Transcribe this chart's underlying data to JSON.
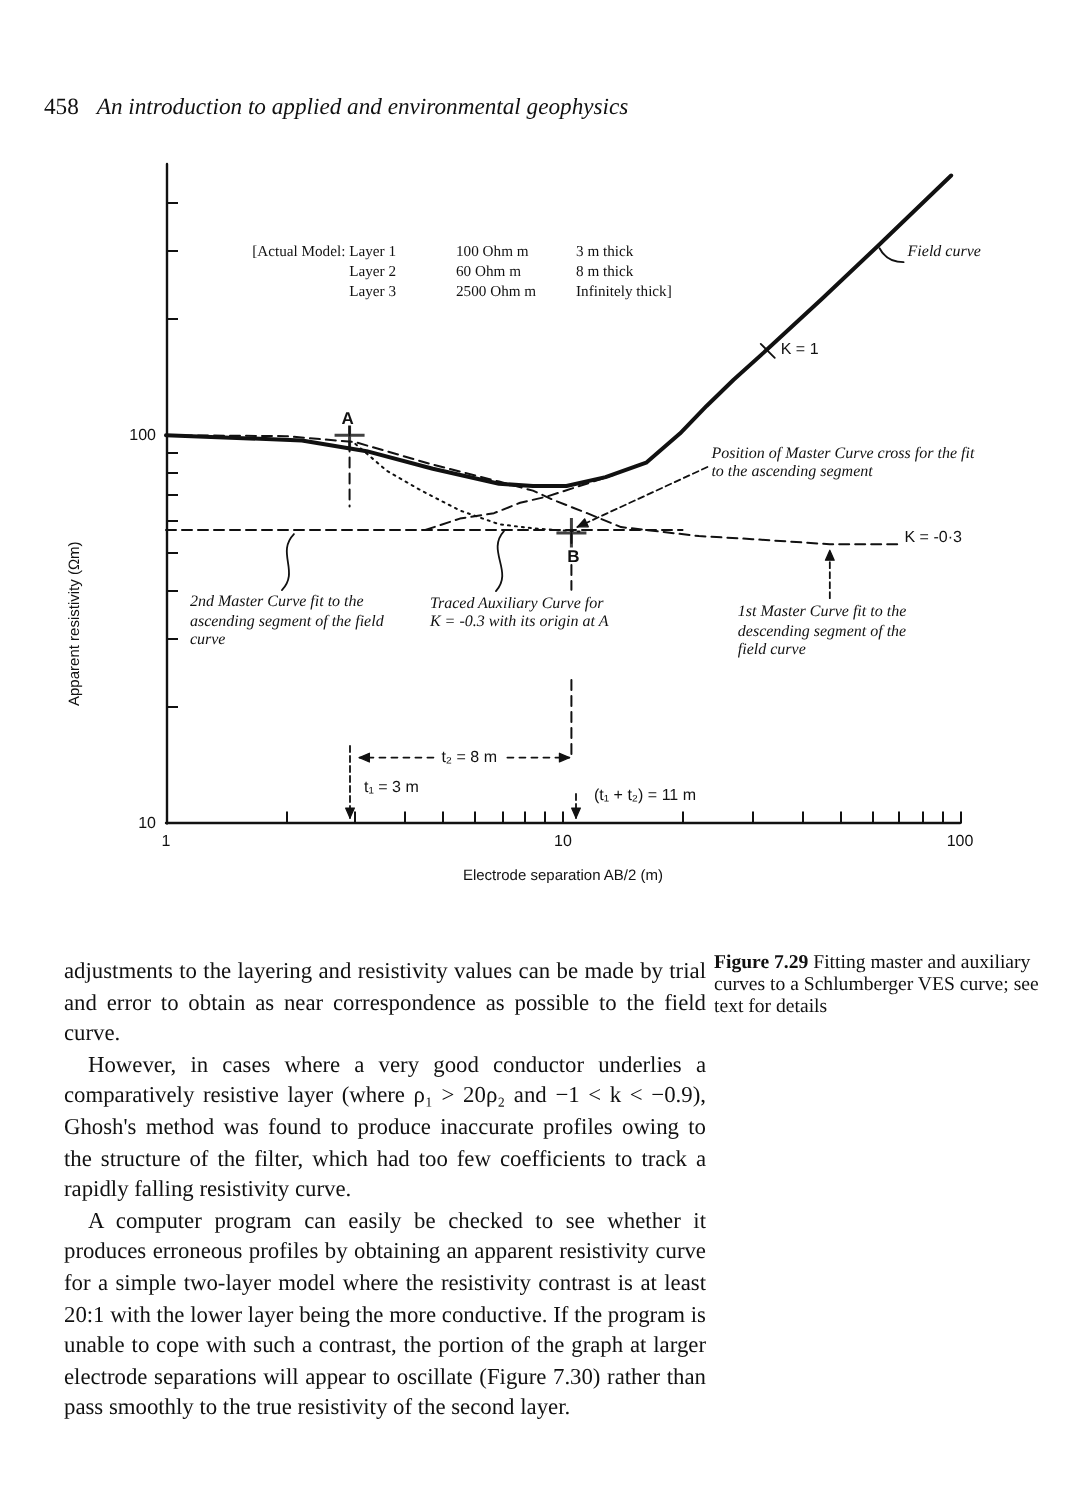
{
  "chart_data": {
    "type": "line",
    "xlabel": "Electrode separation AB/2 (m)",
    "ylabel": "Apparent resistivity (Ωm)",
    "log": "xy",
    "xlim": [
      1,
      100
    ],
    "xticks": [
      1,
      {
        "value": 2,
        "label": null
      },
      {
        "value": 3,
        "label": null
      },
      {
        "value": 4,
        "label": null
      },
      {
        "value": 5,
        "label": null
      },
      {
        "value": 6,
        "label": null
      },
      {
        "value": 7,
        "label": null
      },
      {
        "value": 8,
        "label": null
      },
      {
        "value": 9,
        "label": null
      },
      10,
      {
        "value": 20,
        "label": null
      },
      {
        "value": 30,
        "label": null
      },
      {
        "value": 40,
        "label": null
      },
      {
        "value": 50,
        "label": null
      },
      {
        "value": 60,
        "label": null
      },
      {
        "value": 70,
        "label": null
      },
      {
        "value": 80,
        "label": null
      },
      {
        "value": 90,
        "label": null
      },
      100
    ],
    "ylim": [
      10,
      500
    ],
    "yticks": [
      10,
      {
        "value": 20,
        "label": null
      },
      {
        "value": 30,
        "label": null
      },
      {
        "value": 40,
        "label": null
      },
      {
        "value": 50,
        "label": null
      },
      {
        "value": 60,
        "label": null
      },
      {
        "value": 70,
        "label": null
      },
      {
        "value": 80,
        "label": null
      },
      {
        "value": 90,
        "label": null
      },
      100,
      {
        "value": 200,
        "label": null
      },
      {
        "value": 300,
        "label": null
      },
      {
        "value": 400,
        "label": null
      }
    ],
    "series": [
      {
        "color": "#111111",
        "line_style": "solid",
        "x": [
          1,
          2.2,
          3.2,
          4.7,
          6.9,
          8.4,
          10.2,
          12.8,
          16.2,
          19.7,
          23,
          26.9,
          32.6,
          45,
          62,
          95
        ],
        "values": [
          100,
          97,
          91,
          82,
          75,
          74,
          74,
          78,
          85,
          101,
          119,
          139,
          166,
          225,
          307,
          467
        ]
      },
      {
        "color": "#111111",
        "line_style": "dashed",
        "x": [
          1,
          2,
          3,
          4.7,
          6.9,
          8.4,
          9.5,
          11.5,
          14,
          22,
          30,
          47,
          70
        ],
        "values": [
          100,
          99.5,
          96,
          84,
          76,
          72,
          68,
          63,
          58,
          55,
          54,
          52.4,
          52.4
        ]
      },
      {
        "color": "#111111",
        "line_style": "dotted",
        "x": [
          3,
          3.6,
          4.4,
          5.5,
          6.9,
          8.5,
          11
        ],
        "values": [
          95,
          81,
          72,
          64,
          59,
          57.5,
          56.5
        ]
      },
      {
        "color": "#111111",
        "line_style": "dashed",
        "x": [
          4.5,
          5.5,
          6.7,
          7.8,
          9.1,
          11,
          13.4
        ],
        "values": [
          57,
          61,
          63,
          67,
          69.5,
          74,
          79
        ]
      },
      {
        "color": "#111111",
        "line_style": "dashed",
        "x": [
          1,
          20
        ],
        "values": [
          57,
          57
        ]
      },
      {
        "color": "#111111",
        "line_style": "dashed",
        "x": [
          2.9,
          2.9
        ],
        "values": [
          106,
          65.5
        ]
      },
      {
        "color": "#111111",
        "line_style": "dashed",
        "x": [
          10.5,
          10.5
        ],
        "values": [
          56,
          40
        ]
      },
      {
        "color": "#111111",
        "line_style": "dashed",
        "x": [
          10.5,
          10.5
        ],
        "values": [
          23.4,
          14.6
        ]
      },
      {
        "type": "scatter",
        "marker": "cross",
        "color": "#111111",
        "x": [
          2.9,
          10.5
        ],
        "values": [
          100,
          56
        ]
      }
    ],
    "annotations": [
      "458 An introduction to applied and environmental geophysics",
      "[Actual Model: Layer 1  100 Ohm m  3 m thick",
      "Layer 2  60 Ohm m  8 m thick",
      "Layer 3  2500 Ohm m  Infinitely thick]",
      {
        "text": "Field curve",
        "x": 62,
        "y": 307
      },
      {
        "text": "K = 1",
        "x": 32.6,
        "y": 166
      },
      {
        "text": "A",
        "x": 2.9,
        "y": 100
      },
      {
        "text": "B",
        "x": 10.5,
        "y": 56
      },
      {
        "text": "Position of Master Curve cross for the fit to the ascending segment",
        "x": 10.5,
        "y": 56
      },
      {
        "text": "K = -0·3",
        "x": 70,
        "y": 52.4
      },
      {
        "text": "2nd Master Curve fit to the ascending segment of the field curve",
        "x": 2.1,
        "y": 57
      },
      {
        "text": "Traced Auxiliary Curve for K = -0.3 with its origin at A",
        "x": 7.1,
        "y": 58
      },
      {
        "text": "1st Master Curve fit to the descending segment of the field curve",
        "x": 47,
        "y": 52.4
      },
      {
        "text": "t₂ = 8 m",
        "x": 10.5,
        "y": 14.6
      },
      "t₁ = 3 m",
      "(t₁ + t₂) = 11 m",
      "Figure 7.29 Fitting master and auxiliary curves to a Schlumberger VES curve; see text for details",
      "adjustments to the layering and resistivity values can be made by trial and error to obtain as near correspondence as possible to the field curve.",
      "However, in cases where a very good conductor underlies a comparatively resistive layer (where ρ₁ > 20ρ₂ and −1 < k < −0.9), Ghosh's method was found to produce inaccurate profiles owing to the structure of the filter, which had too few coefficients to track a rapidly falling resistivity curve.",
      "A computer program can easily be checked to see whether it produces erroneous profiles by obtaining an apparent resistivity curve for a simple two-layer model where the resistivity contrast is at least 20:1 with the lower layer being the more conductive. If the program is unable to cope with such a contrast, the portion of the graph at larger electrode separations will appear to oscillate (Figure 7.30) rather than pass smoothly to the true resistivity of the second layer."
    ]
  }
}
